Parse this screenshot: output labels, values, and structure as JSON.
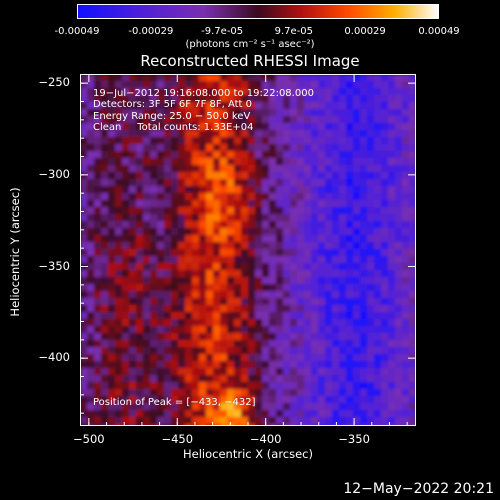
{
  "colorbar": {
    "ticks": [
      "-0.00049",
      "-0.00029",
      "-9.7e-05",
      "9.7e-05",
      "0.00029",
      "0.00049"
    ],
    "tick_values": [
      -0.00049,
      -0.00029,
      -9.7e-05,
      9.7e-05,
      0.00029,
      0.00049
    ],
    "range": [
      -0.00049,
      0.00049
    ],
    "label": "(photons cm⁻² s⁻¹ asec⁻²)"
  },
  "chart_data": {
    "type": "heatmap",
    "title": "Reconstructed RHESSI Image",
    "xlabel": "Heliocentric X (arcsec)",
    "ylabel": "Heliocentric Y (arcsec)",
    "xlim": [
      -505,
      -315
    ],
    "ylim": [
      -437,
      -245
    ],
    "x_ticks": [
      -500,
      -450,
      -400,
      -350
    ],
    "y_ticks": [
      -250,
      -300,
      -350,
      -400
    ],
    "x_tick_labels": [
      "−500",
      "−450",
      "−400",
      "−350"
    ],
    "y_tick_labels": [
      "−250",
      "−300",
      "−350",
      "−400"
    ],
    "colormap": "RHESSI blue-purple-red-yellow-white",
    "peak": {
      "label": "Position of Peak = [−433, −432]",
      "x": -433,
      "y": -432
    },
    "annotations": {
      "time": "19−Jul−2012 19:16:08.000 to 19:22:08.000",
      "detectors": "Detectors: 3F 5F 6F 7F 8F, Att 0",
      "energy": "Energy Range: 25.0 − 50.0 keV",
      "algorithm": "Clean     Total counts: 1.33E+04"
    }
  },
  "footer": {
    "date": "12−May−2022 20:21"
  }
}
